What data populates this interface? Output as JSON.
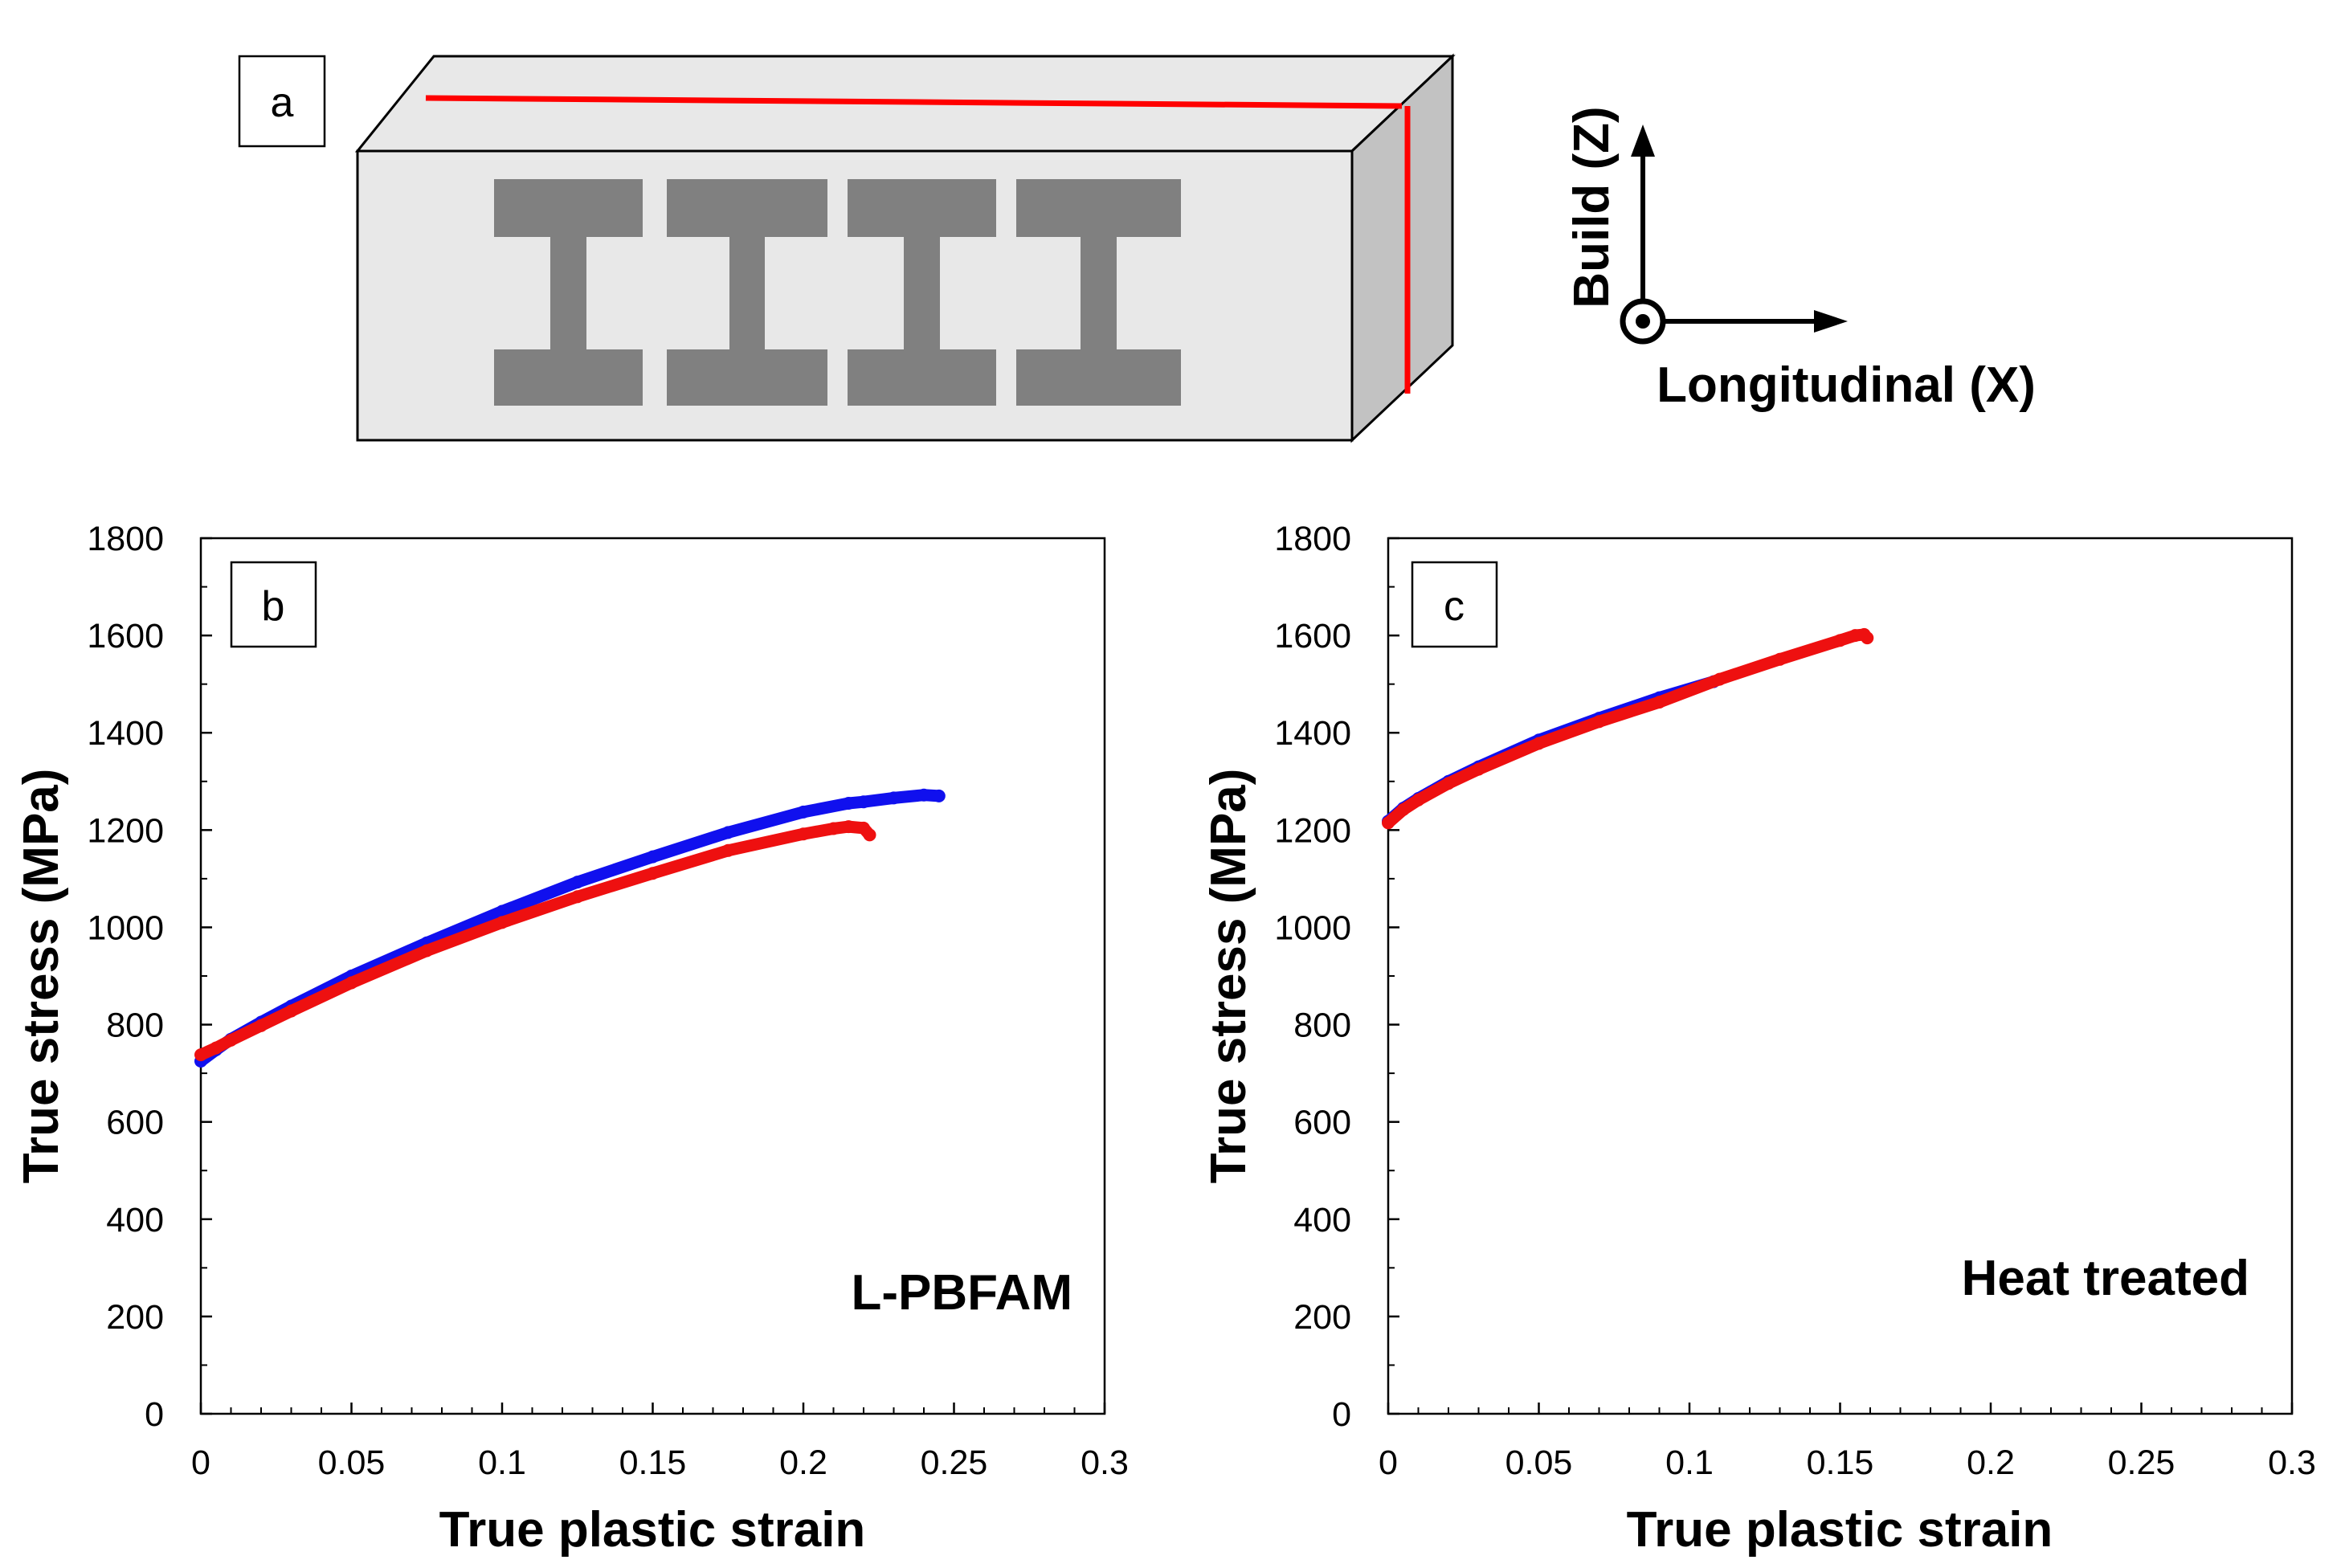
{
  "panel_a": {
    "label": "a",
    "axis_build_label": "Build (Z)",
    "axis_longitudinal_label": "Longitudinal (X)"
  },
  "chart_data": [
    {
      "type": "line",
      "panel_label": "b",
      "annotation": "L-PBFAM",
      "title": "",
      "xlabel": "True plastic strain",
      "ylabel": "True stress (MPa)",
      "xlim": [
        0,
        0.3
      ],
      "ylim": [
        0,
        1800
      ],
      "x_ticks": [
        0,
        0.05,
        0.1,
        0.15,
        0.2,
        0.25,
        0.3
      ],
      "x_tick_labels": [
        "0",
        "0.05",
        "0.1",
        "0.15",
        "0.2",
        "0.25",
        "0.3"
      ],
      "y_ticks": [
        0,
        200,
        400,
        600,
        800,
        1000,
        1200,
        1400,
        1600,
        1800
      ],
      "y_tick_labels": [
        "0",
        "200",
        "400",
        "600",
        "800",
        "1000",
        "1200",
        "1400",
        "1600",
        "1800"
      ],
      "grid": false,
      "legend": "none",
      "series": [
        {
          "color": "#1010ee",
          "x": [
            0,
            0.005,
            0.01,
            0.02,
            0.03,
            0.05,
            0.075,
            0.1,
            0.125,
            0.15,
            0.175,
            0.2,
            0.215,
            0.22,
            0.23,
            0.24,
            0.245
          ],
          "y": [
            725,
            748,
            770,
            805,
            838,
            900,
            968,
            1033,
            1093,
            1145,
            1195,
            1237,
            1255,
            1258,
            1266,
            1272,
            1270
          ]
        },
        {
          "color": "#ee1010",
          "x": [
            0,
            0.005,
            0.01,
            0.02,
            0.03,
            0.05,
            0.075,
            0.1,
            0.125,
            0.15,
            0.175,
            0.2,
            0.21,
            0.215,
            0.22,
            0.222
          ],
          "y": [
            738,
            752,
            768,
            798,
            828,
            886,
            952,
            1010,
            1063,
            1111,
            1158,
            1192,
            1203,
            1207,
            1204,
            1190
          ]
        }
      ]
    },
    {
      "type": "line",
      "panel_label": "c",
      "annotation": "Heat treated",
      "title": "",
      "xlabel": "True plastic strain",
      "ylabel": "True stress (MPa)",
      "xlim": [
        0,
        0.3
      ],
      "ylim": [
        0,
        1800
      ],
      "x_ticks": [
        0,
        0.05,
        0.1,
        0.15,
        0.2,
        0.25,
        0.3
      ],
      "x_tick_labels": [
        "0",
        "0.05",
        "0.1",
        "0.15",
        "0.2",
        "0.25",
        "0.3"
      ],
      "y_ticks": [
        0,
        200,
        400,
        600,
        800,
        1000,
        1200,
        1400,
        1600,
        1800
      ],
      "y_tick_labels": [
        "0",
        "200",
        "400",
        "600",
        "800",
        "1000",
        "1200",
        "1400",
        "1600",
        "1800"
      ],
      "grid": false,
      "legend": "none",
      "series": [
        {
          "color": "#1010ee",
          "x": [
            0,
            0.005,
            0.01,
            0.02,
            0.03,
            0.05,
            0.07,
            0.09,
            0.108
          ],
          "y": [
            1218,
            1245,
            1265,
            1300,
            1330,
            1385,
            1430,
            1472,
            1505
          ]
        },
        {
          "color": "#ee1010",
          "x": [
            0,
            0.005,
            0.01,
            0.02,
            0.03,
            0.05,
            0.07,
            0.09,
            0.11,
            0.13,
            0.15,
            0.155,
            0.158,
            0.159
          ],
          "y": [
            1215,
            1242,
            1262,
            1296,
            1325,
            1378,
            1423,
            1463,
            1510,
            1551,
            1590,
            1600,
            1602,
            1595
          ]
        }
      ]
    }
  ]
}
